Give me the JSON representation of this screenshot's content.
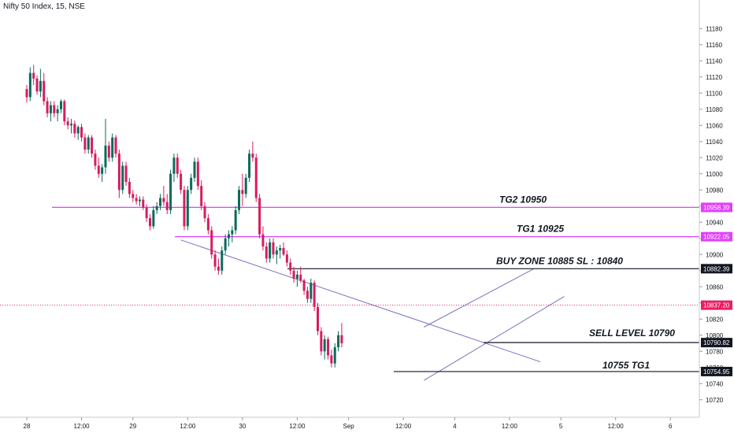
{
  "chart_data": {
    "type": "candlestick",
    "title": "Nifty 50 Index, 15, NSE",
    "ylim": [
      10710,
      11190
    ],
    "y_ticks": [
      11180,
      11160,
      11140,
      11120,
      11100,
      11080,
      11060,
      11040,
      11020,
      11000,
      10980,
      10960,
      10940,
      10920,
      10900,
      10880,
      10860,
      10840,
      10820,
      10800,
      10780,
      10760,
      10740,
      10720
    ],
    "x_ticks": [
      {
        "label": "28",
        "i": 0
      },
      {
        "label": "12:00",
        "i": 16
      },
      {
        "label": "29",
        "i": 31
      },
      {
        "label": "12:00",
        "i": 47
      },
      {
        "label": "30",
        "i": 63
      },
      {
        "label": "12:00",
        "i": 79
      },
      {
        "label": "Sep",
        "i": 94
      },
      {
        "label": "12:00",
        "i": 110
      },
      {
        "label": "4",
        "i": 125
      },
      {
        "label": "12:00",
        "i": 141
      },
      {
        "label": "5",
        "i": 156
      },
      {
        "label": "12:00",
        "i": 172
      },
      {
        "label": "6",
        "i": 188
      }
    ],
    "ohlc": [
      [
        11105,
        11110,
        11088,
        11095
      ],
      [
        11095,
        11132,
        11090,
        11125
      ],
      [
        11125,
        11135,
        11110,
        11118
      ],
      [
        11118,
        11122,
        11098,
        11102
      ],
      [
        11102,
        11130,
        11095,
        11115
      ],
      [
        11115,
        11125,
        11085,
        11090
      ],
      [
        11090,
        11095,
        11070,
        11075
      ],
      [
        11075,
        11090,
        11065,
        11085
      ],
      [
        11085,
        11090,
        11070,
        11075
      ],
      [
        11075,
        11085,
        11065,
        11080
      ],
      [
        11080,
        11092,
        11075,
        11090
      ],
      [
        11090,
        11092,
        11060,
        11065
      ],
      [
        11065,
        11070,
        11055,
        11060
      ],
      [
        11060,
        11068,
        11050,
        11062
      ],
      [
        11062,
        11066,
        11045,
        11050
      ],
      [
        11050,
        11060,
        11042,
        11058
      ],
      [
        11058,
        11062,
        11040,
        11045
      ],
      [
        11045,
        11050,
        11025,
        11030
      ],
      [
        11030,
        11048,
        11025,
        11045
      ],
      [
        11045,
        11048,
        11020,
        11025
      ],
      [
        11025,
        11030,
        11005,
        11010
      ],
      [
        11010,
        11020,
        10995,
        11000
      ],
      [
        11000,
        11012,
        10990,
        11008
      ],
      [
        11008,
        11068,
        11000,
        11035
      ],
      [
        11035,
        11040,
        11015,
        11020
      ],
      [
        11020,
        11050,
        11015,
        11045
      ],
      [
        11045,
        11048,
        11020,
        11025
      ],
      [
        11025,
        11030,
        10970,
        10980
      ],
      [
        10980,
        11015,
        10975,
        11010
      ],
      [
        11010,
        11015,
        10985,
        10990
      ],
      [
        10990,
        10995,
        10970,
        10975
      ],
      [
        10975,
        10980,
        10965,
        10970
      ],
      [
        10970,
        10975,
        10962,
        10966
      ],
      [
        10966,
        10972,
        10960,
        10968
      ],
      [
        10968,
        10972,
        10955,
        10958
      ],
      [
        10958,
        10962,
        10940,
        10945
      ],
      [
        10945,
        10950,
        10930,
        10935
      ],
      [
        10935,
        10960,
        10932,
        10955
      ],
      [
        10955,
        10965,
        10950,
        10960
      ],
      [
        10960,
        10975,
        10955,
        10970
      ],
      [
        10970,
        10985,
        10960,
        10965
      ],
      [
        10965,
        10975,
        10950,
        10955
      ],
      [
        10955,
        11005,
        10950,
        11000
      ],
      [
        11000,
        11025,
        10990,
        11020
      ],
      [
        11020,
        11025,
        10995,
        11000
      ],
      [
        11000,
        11005,
        10975,
        10980
      ],
      [
        10980,
        10985,
        10930,
        10935
      ],
      [
        10935,
        10985,
        10930,
        10980
      ],
      [
        10980,
        11000,
        10975,
        10995
      ],
      [
        10995,
        11020,
        10990,
        11015
      ],
      [
        11015,
        11020,
        10980,
        10985
      ],
      [
        10985,
        10992,
        10955,
        10960
      ],
      [
        10960,
        10965,
        10940,
        10945
      ],
      [
        10945,
        10950,
        10925,
        10930
      ],
      [
        10930,
        10935,
        10895,
        10900
      ],
      [
        10900,
        10905,
        10880,
        10885
      ],
      [
        10885,
        10895,
        10875,
        10880
      ],
      [
        10880,
        10910,
        10875,
        10905
      ],
      [
        10905,
        10925,
        10900,
        10920
      ],
      [
        10920,
        10930,
        10910,
        10925
      ],
      [
        10925,
        10935,
        10915,
        10930
      ],
      [
        10930,
        10960,
        10925,
        10955
      ],
      [
        10955,
        10985,
        10950,
        10980
      ],
      [
        10980,
        11000,
        10960,
        10975
      ],
      [
        10975,
        11000,
        10970,
        10995
      ],
      [
        10995,
        11030,
        10990,
        11025
      ],
      [
        11025,
        11040,
        11015,
        11020
      ],
      [
        11020,
        11025,
        10965,
        10970
      ],
      [
        10970,
        10975,
        10920,
        10925
      ],
      [
        10925,
        10935,
        10905,
        10910
      ],
      [
        10910,
        10915,
        10890,
        10895
      ],
      [
        10895,
        10920,
        10890,
        10915
      ],
      [
        10915,
        10920,
        10895,
        10900
      ],
      [
        10900,
        10910,
        10888,
        10905
      ],
      [
        10905,
        10912,
        10895,
        10908
      ],
      [
        10908,
        10915,
        10898,
        10900
      ],
      [
        10900,
        10905,
        10885,
        10890
      ],
      [
        10890,
        10895,
        10875,
        10880
      ],
      [
        10880,
        10885,
        10865,
        10870
      ],
      [
        10870,
        10880,
        10860,
        10875
      ],
      [
        10875,
        10885,
        10865,
        10868
      ],
      [
        10868,
        10870,
        10850,
        10855
      ],
      [
        10855,
        10860,
        10840,
        10845
      ],
      [
        10845,
        10870,
        10840,
        10865
      ],
      [
        10865,
        10868,
        10830,
        10835
      ],
      [
        10835,
        10840,
        10800,
        10805
      ],
      [
        10805,
        10810,
        10775,
        10780
      ],
      [
        10780,
        10800,
        10770,
        10795
      ],
      [
        10795,
        10798,
        10770,
        10775
      ],
      [
        10775,
        10782,
        10760,
        10765
      ],
      [
        10765,
        10790,
        10760,
        10785
      ],
      [
        10785,
        10805,
        10780,
        10800
      ],
      [
        10800,
        10815,
        10785,
        10790
      ]
    ],
    "horizontal_lines": [
      {
        "label": "TG2 10950",
        "value": 10958.39,
        "price_label": "10958.39",
        "color": "#e040fb"
      },
      {
        "label": "TG1 10925",
        "value": 10922.05,
        "price_label": "10922.05",
        "color": "#e040fb"
      },
      {
        "label": "BUY ZONE 10885 SL : 10840",
        "value": 10882.39,
        "price_label": "10882.39",
        "color": "#131722"
      },
      {
        "label": "SELL LEVEL 10790",
        "value": 10790.82,
        "price_label": "10790.82",
        "color": "#131722"
      },
      {
        "label": "10755 TG1",
        "value": 10754.95,
        "price_label": "10754.95",
        "color": "#131722"
      }
    ],
    "current_price": {
      "value": 10837.2,
      "price_label": "10837.20",
      "color": "#e91e63"
    },
    "trend_lines": [
      {
        "name": "falling-trend",
        "x1": 45,
        "y1": 10918,
        "x2": 150,
        "y2": 10767
      },
      {
        "name": "channel-upper",
        "x1": 116,
        "y1": 10810,
        "x2": 148,
        "y2": 10882
      },
      {
        "name": "channel-lower",
        "x1": 116,
        "y1": 10744,
        "x2": 157,
        "y2": 10848
      }
    ],
    "grid": false,
    "colors": {
      "up": "#26a69a",
      "down": "#ef5350",
      "up_body": "#0a6b5a",
      "down_body": "#d81b60",
      "magenta": "#e040fb",
      "trend": "#7b6fbf"
    }
  }
}
